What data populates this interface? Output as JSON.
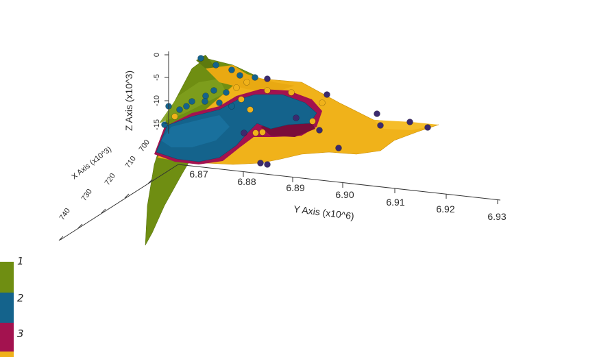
{
  "chart_data": {
    "type": "3d-surface-scatter",
    "title": "",
    "xlabel": "X Axis (x10^3)",
    "ylabel": "Y Axis (x10^6)",
    "zlabel": "Z Axis (x10^3)",
    "x_ticks": [
      "700",
      "710",
      "720",
      "730",
      "740"
    ],
    "y_ticks": [
      "6.87",
      "6.88",
      "6.89",
      "6.90",
      "6.91",
      "6.92",
      "6.93"
    ],
    "z_ticks": [
      "0",
      "-5",
      "-10",
      "-15"
    ],
    "legend": [
      {
        "label": "1",
        "color": "#6f8e12"
      },
      {
        "label": "2",
        "color": "#14638c"
      },
      {
        "label": "3",
        "color": "#a3124f"
      },
      {
        "label": "",
        "color": "#f0b21a"
      }
    ],
    "colors": {
      "surface_1": "#6f8e12",
      "surface_2": "#14638c",
      "surface_3": "#a3124f",
      "surface_4": "#f0b21a",
      "points_dark": "#3b2a6e"
    }
  }
}
